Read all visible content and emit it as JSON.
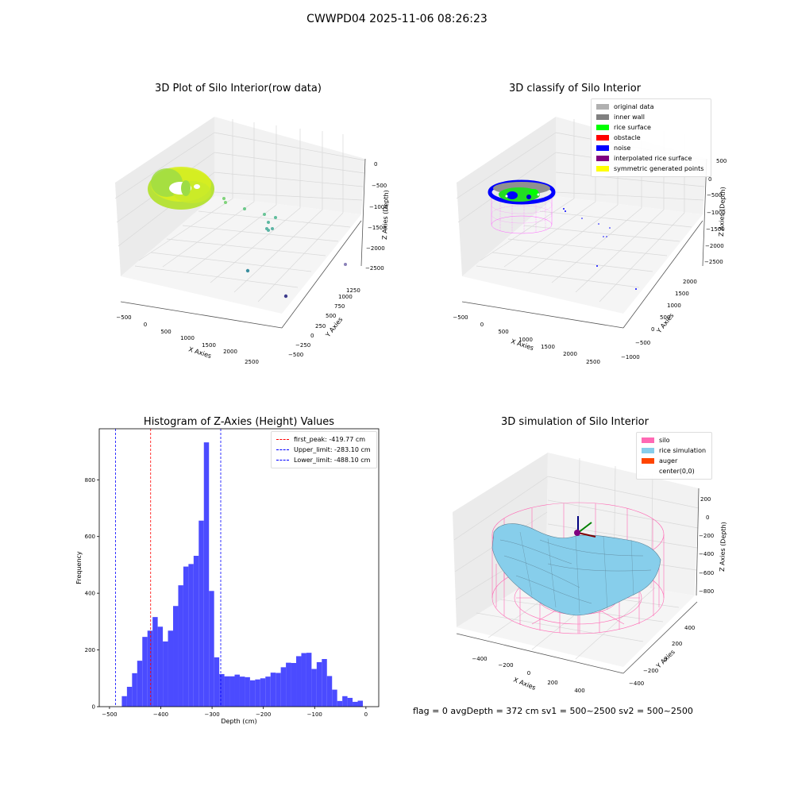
{
  "figure": {
    "suptitle": "CWWPD04 2025-11-06 08:26:23",
    "footer": "flag = 0     avgDepth = 372 cm  sv1 = 500~2500  sv2 = 500~2500"
  },
  "colors": {
    "original_data": "#b0b0b0",
    "inner_wall": "#808080",
    "rice_surface": "#00ff00",
    "obstacle": "#ff0000",
    "noise": "#0000ff",
    "interpolated_rice_surface": "#800080",
    "symmetric_generated_points": "#ffff00",
    "silo": "#ff69b4",
    "rice_simulation": "#87ceeb",
    "auger": "#ff4500",
    "hist_bar": "#4b4bff",
    "first_peak_line": "#ff0000",
    "limit_line": "#0000ff"
  },
  "chart_data": [
    {
      "type": "scatter",
      "title": "3D Plot of Silo Interior(row data)",
      "xlabel": "X Axies",
      "ylabel": "Y Axies",
      "zlabel": "Z Axies (Depth)",
      "x_ticks": [
        "−500",
        "0",
        "500",
        "1000",
        "1500",
        "2000",
        "2500"
      ],
      "y_ticks": [
        "−500",
        "−250",
        "0",
        "250",
        "500",
        "750",
        "1000",
        "1250"
      ],
      "z_ticks": [
        "0",
        "−500",
        "−1000",
        "−1500",
        "−2000",
        "−2500"
      ]
    },
    {
      "type": "scatter",
      "title": "3D classify of Silo Interior",
      "xlabel": "X Axies",
      "ylabel": "Y Axies",
      "zlabel": "Z Axies (Depth)",
      "x_ticks": [
        "−500",
        "0",
        "500",
        "1000",
        "1500",
        "2000",
        "2500"
      ],
      "y_ticks": [
        "−1000",
        "−500",
        "0",
        "500",
        "1000",
        "1500",
        "2000"
      ],
      "z_ticks": [
        "500",
        "0",
        "−500",
        "−1000",
        "−1500",
        "−2000",
        "−2500"
      ],
      "legend": [
        "original data",
        "inner wall",
        "rice surface",
        "obstacle",
        "noise",
        "interpolated rice surface",
        "symmetric generated points"
      ],
      "legend_position": "top-right"
    },
    {
      "type": "bar",
      "title": "Histogram of Z-Axies (Height) Values",
      "xlabel": "Depth (cm)",
      "ylabel": "Frequency",
      "x_ticks": [
        -500,
        -400,
        -300,
        -200,
        -100,
        0
      ],
      "y_ticks": [
        0,
        200,
        400,
        600,
        800
      ],
      "xlim": [
        -520,
        25
      ],
      "ylim": [
        0,
        980
      ],
      "bin_width": 10,
      "bin_starts": [
        -476,
        -466,
        -456,
        -446,
        -436,
        -426,
        -416,
        -406,
        -396,
        -386,
        -376,
        -366,
        -356,
        -346,
        -336,
        -326,
        -316,
        -306,
        -296,
        -286,
        -276,
        -266,
        -256,
        -246,
        -236,
        -226,
        -216,
        -206,
        -196,
        -186,
        -176,
        -166,
        -156,
        -146,
        -136,
        -126,
        -116,
        -106,
        -96,
        -86,
        -76,
        -66,
        -56,
        -46,
        -36,
        -26,
        -16
      ],
      "values": [
        37,
        70,
        118,
        162,
        246,
        268,
        316,
        282,
        230,
        268,
        355,
        428,
        494,
        503,
        532,
        656,
        932,
        408,
        174,
        115,
        107,
        107,
        113,
        106,
        104,
        93,
        96,
        100,
        106,
        120,
        119,
        139,
        155,
        154,
        178,
        189,
        190,
        133,
        157,
        168,
        108,
        60,
        20,
        37,
        31,
        17,
        21
      ],
      "vlines": [
        {
          "label": "first_peak: -419.77 cm",
          "x": -419.77,
          "color": "#ff0000"
        },
        {
          "label": "Upper_limit: -283.10 cm",
          "x": -283.1,
          "color": "#0000ff"
        },
        {
          "label": "Lower_limit: -488.10 cm",
          "x": -488.1,
          "color": "#0000ff"
        }
      ],
      "legend_position": "top-right"
    },
    {
      "type": "surface",
      "title": "3D simulation of Silo Interior",
      "xlabel": "X Axies",
      "ylabel": "Y Axies",
      "zlabel": "Z Axies (Depth)",
      "x_ticks": [
        "−400",
        "−200",
        "0",
        "200",
        "400"
      ],
      "y_ticks": [
        "−400",
        "−200",
        "0",
        "200",
        "400"
      ],
      "z_ticks": [
        "200",
        "0",
        "−200",
        "−400",
        "−600",
        "−800"
      ],
      "legend": [
        "silo",
        "rice simulation",
        "auger",
        "center(0,0)"
      ],
      "legend_position": "top-right"
    }
  ]
}
